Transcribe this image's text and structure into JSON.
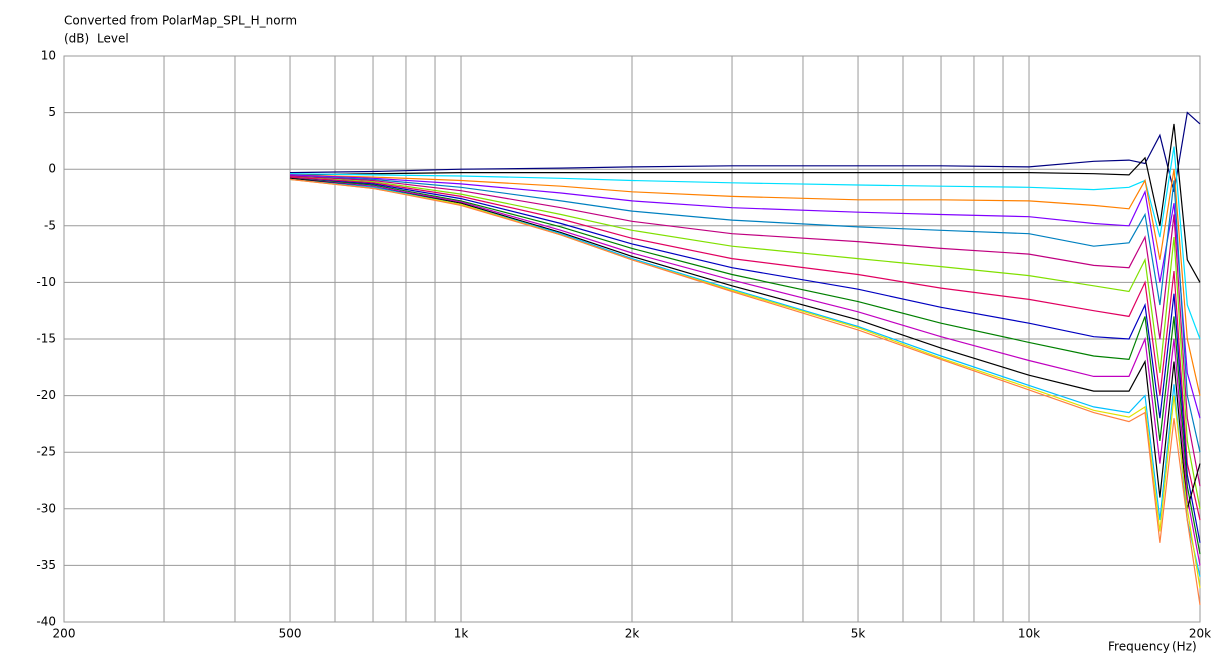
{
  "chart_data": {
    "type": "line",
    "title": "Converted from PolarMap_SPL_H_norm",
    "y_unit": "(dB)",
    "y_label": "Level",
    "x_label": "Frequency",
    "x_unit": "(Hz)",
    "x_scale": "log",
    "grid": true,
    "xlim": [
      200,
      20000
    ],
    "xticks": [
      200,
      500,
      {
        "value": 1000,
        "label": "1k"
      },
      {
        "value": 2000,
        "label": "2k"
      },
      {
        "value": 5000,
        "label": "5k"
      },
      {
        "value": 10000,
        "label": "10k"
      },
      {
        "value": 20000,
        "label": "20k"
      }
    ],
    "x_minor_ticks": [
      300,
      400,
      600,
      700,
      800,
      900,
      3000,
      4000,
      6000,
      7000,
      8000,
      9000
    ],
    "ylim": [
      -40,
      10
    ],
    "yticks": [
      -40,
      -35,
      -30,
      -25,
      -20,
      -15,
      -10,
      -5,
      0,
      5,
      10
    ],
    "x": [
      500,
      700,
      1000,
      1500,
      2000,
      3000,
      5000,
      7000,
      10000,
      13000,
      15000,
      16000,
      17000,
      18000,
      19000,
      20000
    ],
    "series": [
      {
        "color": "#000080",
        "values": [
          -0.3,
          -0.2,
          0,
          0.1,
          0.2,
          0.3,
          0.3,
          0.3,
          0.2,
          0.7,
          0.8,
          0.5,
          3,
          -2,
          5,
          4
        ]
      },
      {
        "color": "#000000",
        "values": [
          -0.5,
          -0.4,
          -0.3,
          -0.3,
          -0.3,
          -0.3,
          -0.3,
          -0.3,
          -0.3,
          -0.4,
          -0.5,
          1,
          -5,
          4,
          -8,
          -10
        ]
      },
      {
        "color": "#00e0ff",
        "values": [
          -0.4,
          -0.5,
          -0.6,
          -0.8,
          -1.0,
          -1.2,
          -1.4,
          -1.5,
          -1.6,
          -1.8,
          -1.6,
          -1,
          -6,
          2,
          -12,
          -15
        ]
      },
      {
        "color": "#ff8000",
        "values": [
          -0.5,
          -0.7,
          -1.0,
          -1.5,
          -2.0,
          -2.4,
          -2.7,
          -2.7,
          -2.8,
          -3.2,
          -3.5,
          -1,
          -8,
          0,
          -15,
          -20
        ]
      },
      {
        "color": "#8000ff",
        "values": [
          -0.5,
          -0.8,
          -1.3,
          -2.1,
          -2.8,
          -3.4,
          -3.8,
          -4.0,
          -4.2,
          -4.8,
          -5.0,
          -2,
          -10,
          -3,
          -18,
          -22
        ]
      },
      {
        "color": "#0080c0",
        "values": [
          -0.6,
          -0.9,
          -1.6,
          -2.8,
          -3.7,
          -4.5,
          -5.1,
          -5.4,
          -5.7,
          -6.8,
          -6.5,
          -4,
          -12,
          -1,
          -20,
          -25
        ]
      },
      {
        "color": "#c00080",
        "values": [
          -0.6,
          -1.0,
          -1.9,
          -3.4,
          -4.6,
          -5.7,
          -6.4,
          -7.0,
          -7.5,
          -8.5,
          -8.7,
          -6,
          -15,
          -4,
          -22,
          -28
        ]
      },
      {
        "color": "#80e000",
        "values": [
          -0.7,
          -1.1,
          -2.2,
          -4.0,
          -5.4,
          -6.8,
          -7.9,
          -8.6,
          -9.4,
          -10.3,
          -10.8,
          -8,
          -18,
          -6,
          -24,
          -30
        ]
      },
      {
        "color": "#e00060",
        "values": [
          -0.7,
          -1.2,
          -2.4,
          -4.4,
          -6.1,
          -7.9,
          -9.3,
          -10.5,
          -11.5,
          -12.5,
          -13.0,
          -10,
          -20,
          -9,
          -26,
          -31
        ]
      },
      {
        "color": "#0000c0",
        "values": [
          -0.8,
          -1.3,
          -2.6,
          -4.8,
          -6.6,
          -8.7,
          -10.6,
          -12.2,
          -13.6,
          -14.8,
          -15.0,
          -12,
          -22,
          -11,
          -27,
          -33
        ]
      },
      {
        "color": "#008000",
        "values": [
          -0.8,
          -1.4,
          -2.8,
          -5.1,
          -7.0,
          -9.3,
          -11.7,
          -13.6,
          -15.3,
          -16.5,
          -16.8,
          -13,
          -24,
          -13,
          -28,
          -34
        ]
      },
      {
        "color": "#c000c0",
        "values": [
          -0.8,
          -1.5,
          -2.9,
          -5.4,
          -7.4,
          -9.8,
          -12.6,
          -14.8,
          -16.9,
          -18.3,
          -18.3,
          -15,
          -26,
          -15,
          -29,
          -35
        ]
      },
      {
        "color": "#000000",
        "values": [
          -0.8,
          -1.6,
          -3.0,
          -5.6,
          -7.7,
          -10.3,
          -13.3,
          -15.8,
          -18.2,
          -19.6,
          -19.6,
          -17,
          -29,
          -17,
          -30,
          -26
        ]
      },
      {
        "color": "#00c0ff",
        "values": [
          -0.9,
          -1.6,
          -3.1,
          -5.7,
          -7.9,
          -10.6,
          -13.9,
          -16.5,
          -19.1,
          -21.0,
          -21.5,
          -20,
          -31,
          -19,
          -31,
          -36
        ]
      },
      {
        "color": "#e0e000",
        "values": [
          -0.9,
          -1.7,
          -3.1,
          -5.8,
          -8.0,
          -10.7,
          -14.0,
          -16.7,
          -19.3,
          -21.3,
          -21.9,
          -21,
          -32,
          -20,
          -30,
          -37
        ]
      },
      {
        "color": "#ff8040",
        "values": [
          -0.9,
          -1.7,
          -3.2,
          -5.8,
          -8.0,
          -10.8,
          -14.2,
          -16.8,
          -19.5,
          -21.5,
          -22.3,
          -21.5,
          -33,
          -22,
          -31,
          -38.5
        ]
      }
    ]
  }
}
